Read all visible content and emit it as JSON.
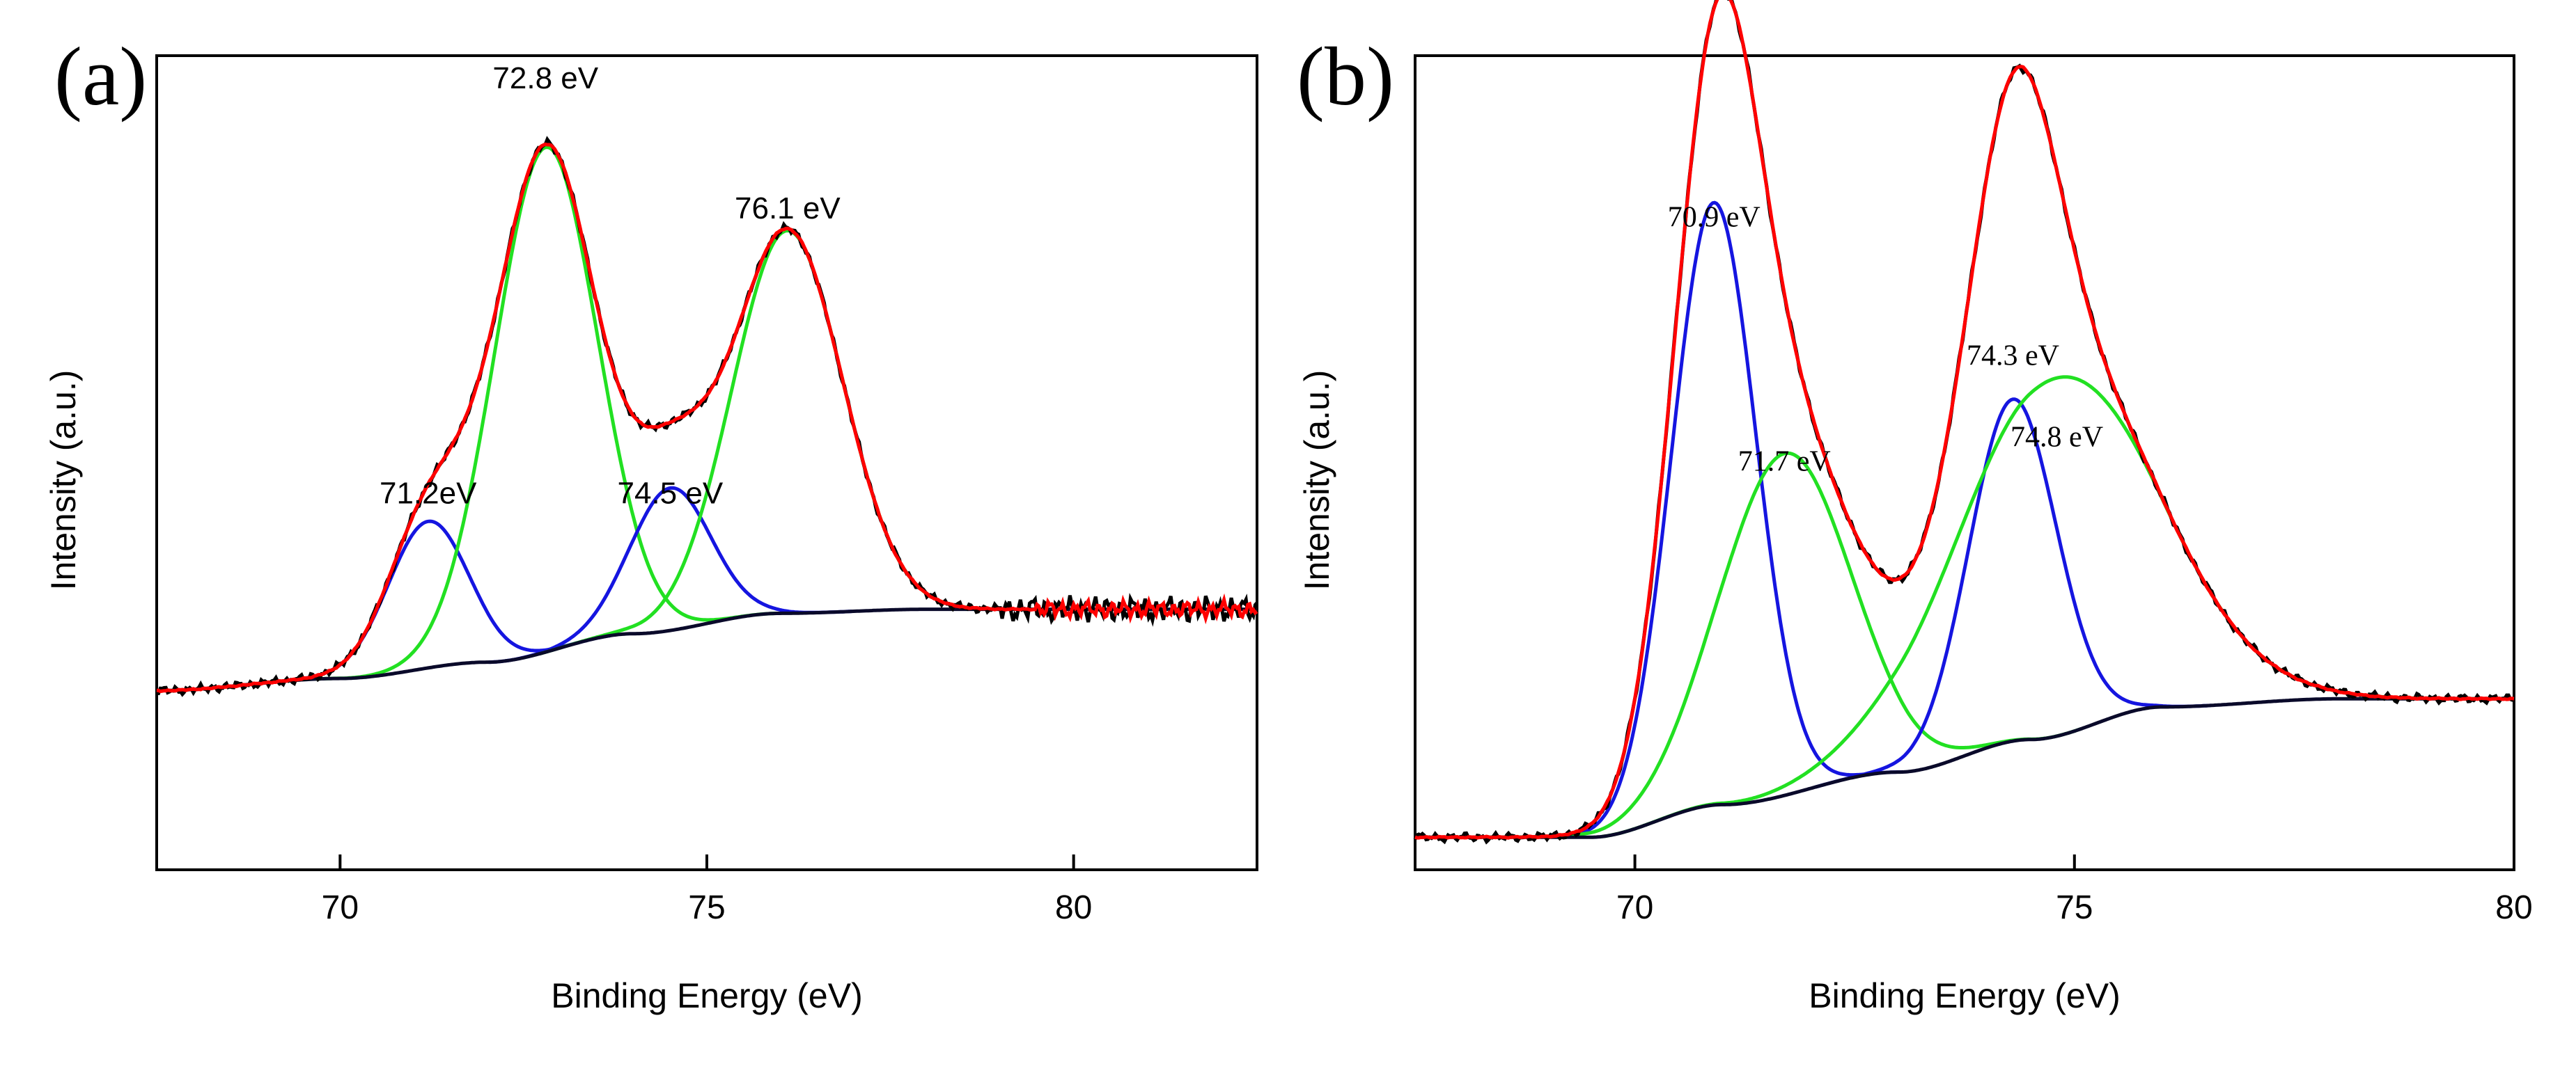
{
  "colors": {
    "raw": "#000000",
    "envelope": "#ff0000",
    "component_blue": "#1515e0",
    "component_green": "#22e022",
    "background": "#0a0a2a"
  },
  "chart_data": [
    {
      "type": "line",
      "panel": "(a)",
      "xlabel": "Binding Energy (eV)",
      "ylabel": "Intensity (a.u.)",
      "xlim": [
        67.5,
        82.5
      ],
      "ylim": [
        0,
        1
      ],
      "xticks": [
        70,
        75,
        80
      ],
      "xtick_labels": [
        "70",
        "75",
        "80"
      ],
      "baseline": {
        "x": [
          67.5,
          70,
          72,
          74,
          76,
          78,
          82.5
        ],
        "y": [
          0.22,
          0.235,
          0.255,
          0.29,
          0.315,
          0.32,
          0.32
        ]
      },
      "components": [
        {
          "color": "blue",
          "center": 71.2,
          "amplitude": 0.18,
          "sigma": 0.55,
          "label": "71.2eV"
        },
        {
          "color": "green",
          "center": 72.8,
          "amplitude": 0.62,
          "sigma": 0.7,
          "label": "72.8 eV"
        },
        {
          "color": "blue",
          "center": 74.5,
          "amplitude": 0.175,
          "sigma": 0.55,
          "label": "74.5 eV"
        },
        {
          "color": "green",
          "center": 76.1,
          "amplitude": 0.47,
          "sigma": 0.75,
          "label": "76.1 eV"
        }
      ],
      "annotations": [
        {
          "text": "72.8 eV",
          "x": 72.8,
          "y": 0.96
        },
        {
          "text": "76.1 eV",
          "x": 76.1,
          "y": 0.8
        },
        {
          "text": "71.2eV",
          "x": 71.2,
          "y": 0.45
        },
        {
          "text": "74.5 eV",
          "x": 74.5,
          "y": 0.45
        }
      ]
    },
    {
      "type": "line",
      "panel": "(b)",
      "xlabel": "Binding Energy (eV)",
      "ylabel": "Intensity (a.u.)",
      "xlim": [
        67.5,
        80
      ],
      "ylim": [
        0,
        1
      ],
      "xticks": [
        70,
        75,
        80
      ],
      "xtick_labels": [
        "70",
        "75",
        "80"
      ],
      "baseline": {
        "x": [
          67.5,
          69.5,
          71,
          73,
          74.5,
          76,
          78,
          80
        ],
        "y": [
          0.04,
          0.04,
          0.08,
          0.12,
          0.16,
          0.2,
          0.21,
          0.21
        ]
      },
      "components": [
        {
          "color": "blue",
          "center": 70.9,
          "amplitude": 0.74,
          "sigma": 0.48,
          "label": "70.9 eV"
        },
        {
          "color": "green",
          "center": 71.7,
          "amplitude": 0.42,
          "sigma": 0.75,
          "label": "71.7 eV"
        },
        {
          "color": "blue",
          "center": 74.3,
          "amplitude": 0.42,
          "sigma": 0.5,
          "label": "74.3 eV"
        },
        {
          "color": "green",
          "center": 74.8,
          "amplitude": 0.44,
          "sigma": 1.15,
          "label": "74.8 eV"
        }
      ],
      "annotations": [
        {
          "text": "70.9 eV",
          "x": 70.9,
          "y": 0.79
        },
        {
          "text": "71.7 eV",
          "x": 71.7,
          "y": 0.49
        },
        {
          "text": "74.3 eV",
          "x": 74.3,
          "y": 0.62
        },
        {
          "text": "74.8 eV",
          "x": 74.8,
          "y": 0.52
        }
      ]
    }
  ]
}
